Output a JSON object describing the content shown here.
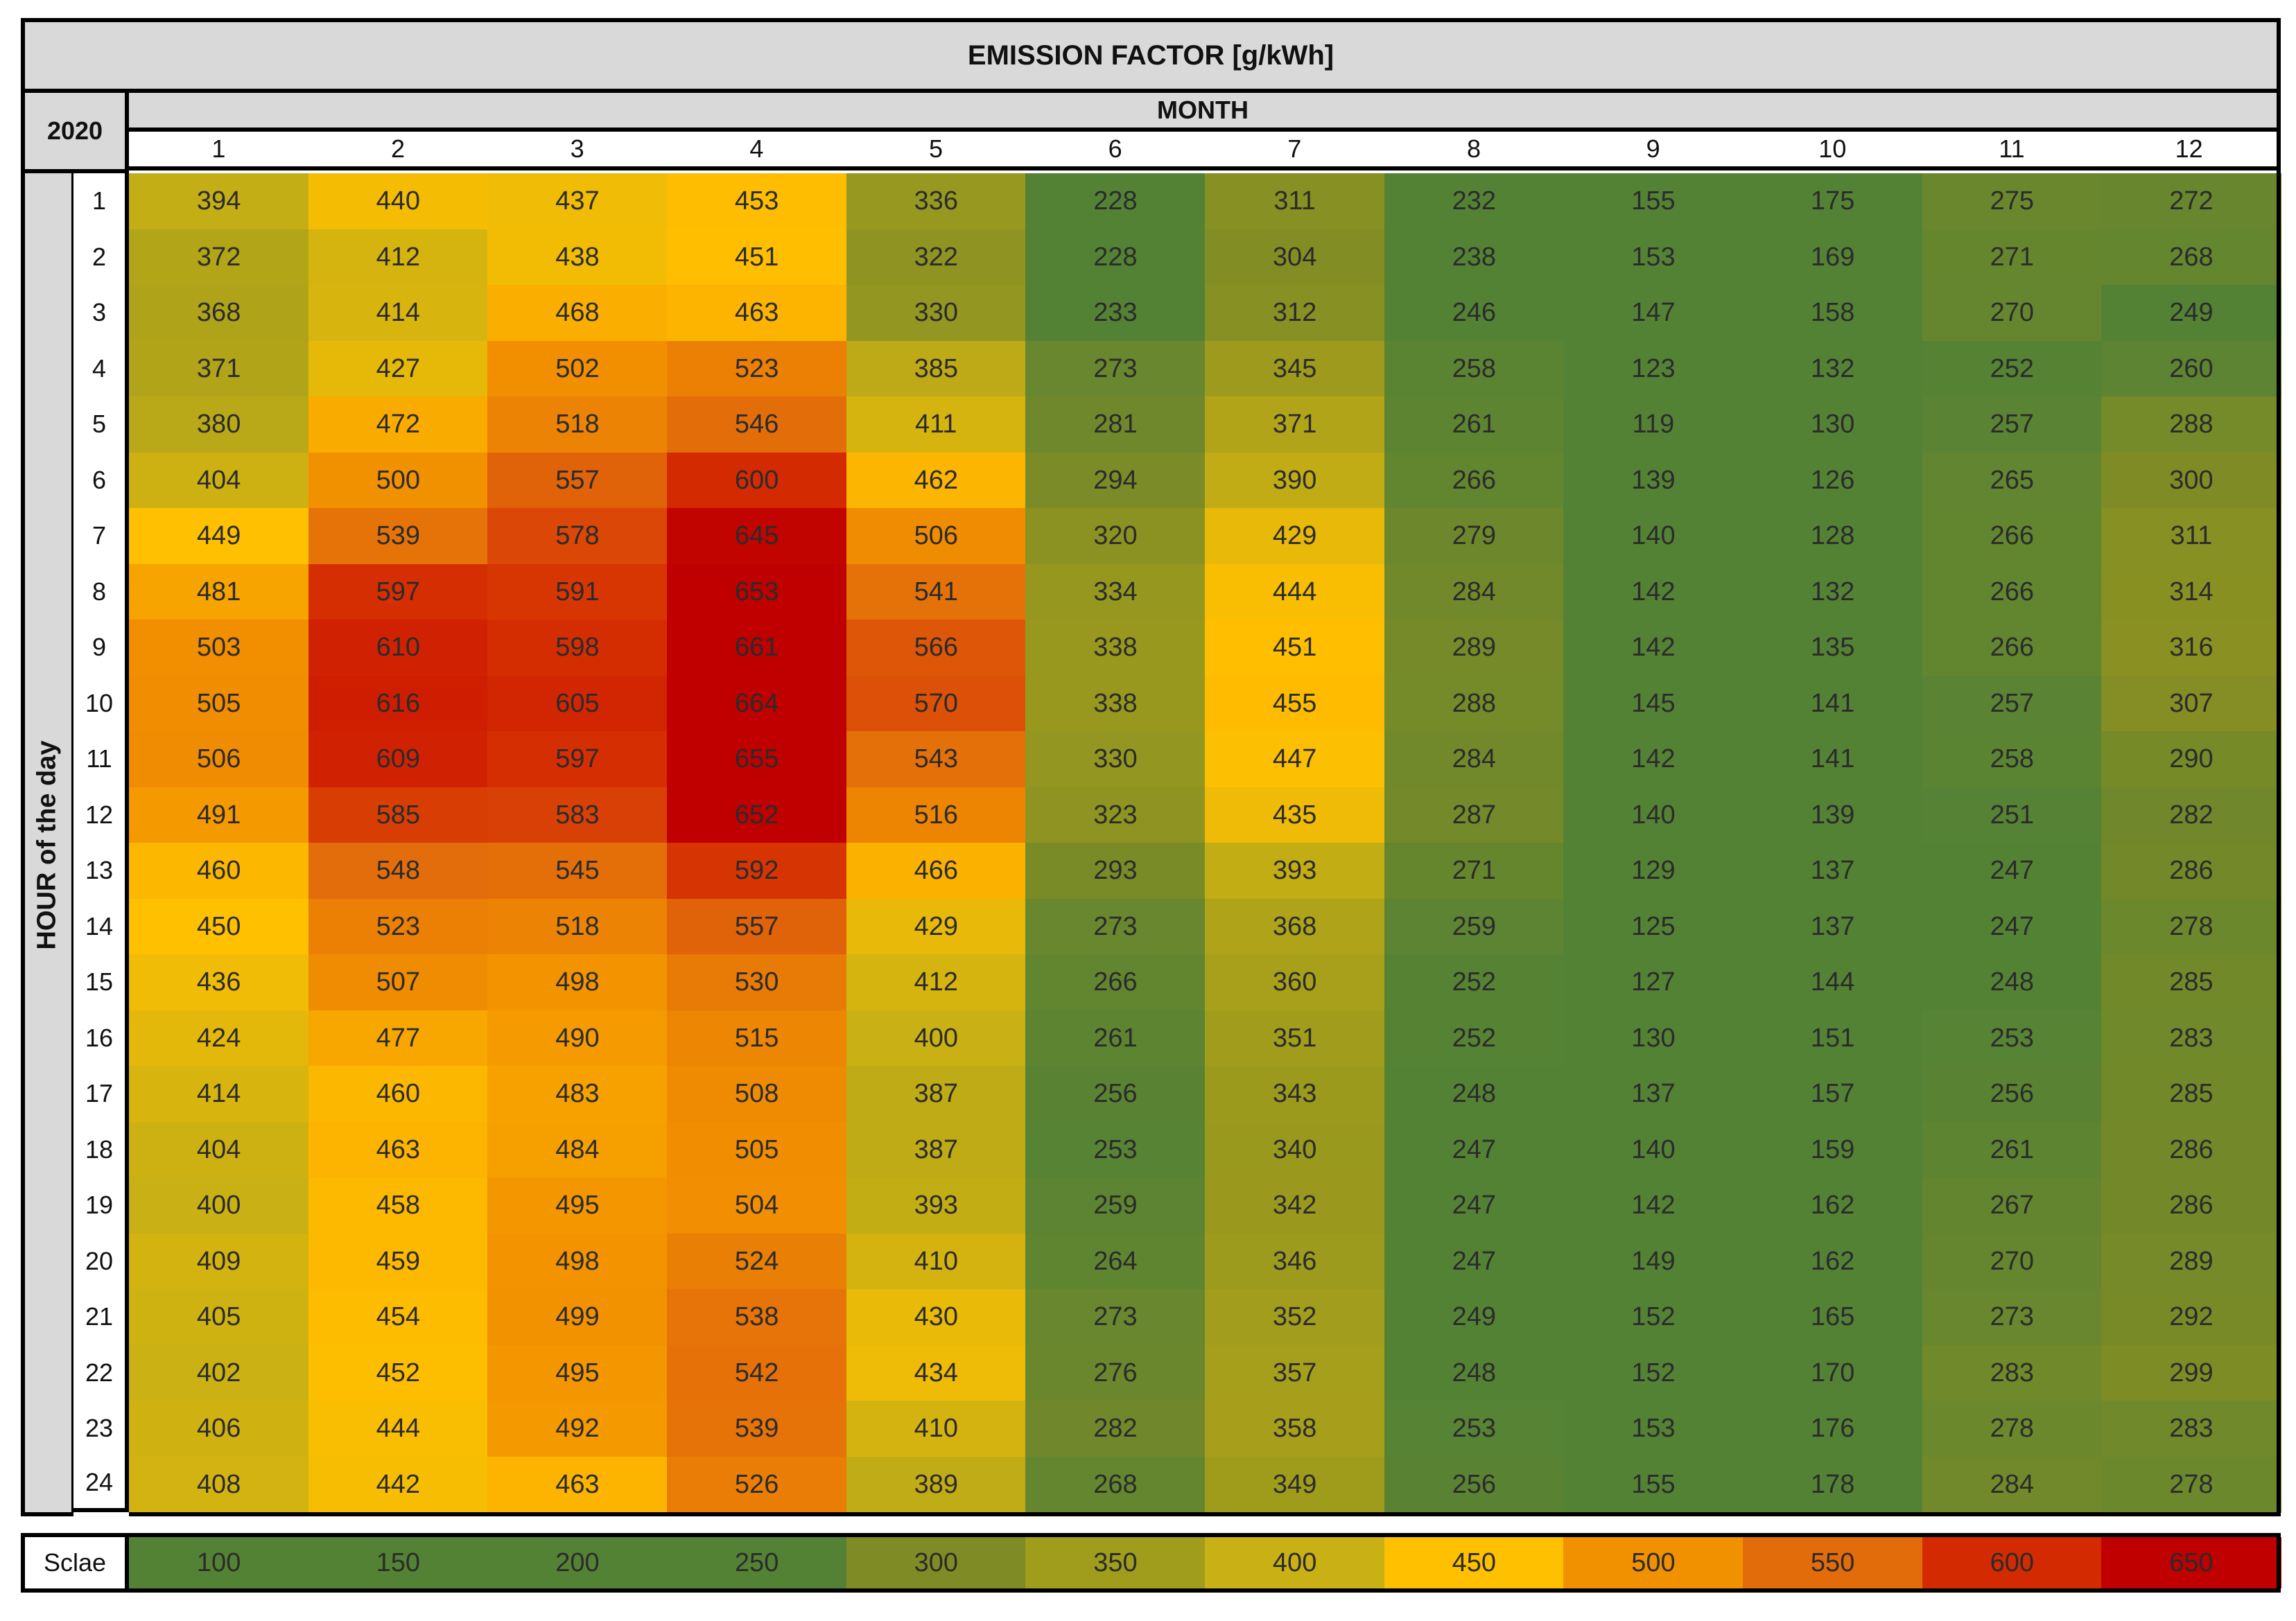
{
  "chart_data": {
    "type": "heatmap",
    "title": "EMISSION FACTOR [g/kWh]",
    "year_label": "2020",
    "xlabel": "MONTH",
    "ylabel": "HOUR of the day",
    "x_categories": [
      "1",
      "2",
      "3",
      "4",
      "5",
      "6",
      "7",
      "8",
      "9",
      "10",
      "11",
      "12"
    ],
    "y_categories": [
      "1",
      "2",
      "3",
      "4",
      "5",
      "6",
      "7",
      "8",
      "9",
      "10",
      "11",
      "12",
      "13",
      "14",
      "15",
      "16",
      "17",
      "18",
      "19",
      "20",
      "21",
      "22",
      "23",
      "24"
    ],
    "values": [
      [
        394,
        440,
        437,
        453,
        336,
        228,
        311,
        232,
        155,
        175,
        275,
        272
      ],
      [
        372,
        412,
        438,
        451,
        322,
        228,
        304,
        238,
        153,
        169,
        271,
        268
      ],
      [
        368,
        414,
        468,
        463,
        330,
        233,
        312,
        246,
        147,
        158,
        270,
        249
      ],
      [
        371,
        427,
        502,
        523,
        385,
        273,
        345,
        258,
        123,
        132,
        252,
        260
      ],
      [
        380,
        472,
        518,
        546,
        411,
        281,
        371,
        261,
        119,
        130,
        257,
        288
      ],
      [
        404,
        500,
        557,
        600,
        462,
        294,
        390,
        266,
        139,
        126,
        265,
        300
      ],
      [
        449,
        539,
        578,
        645,
        506,
        320,
        429,
        279,
        140,
        128,
        266,
        311
      ],
      [
        481,
        597,
        591,
        653,
        541,
        334,
        444,
        284,
        142,
        132,
        266,
        314
      ],
      [
        503,
        610,
        598,
        661,
        566,
        338,
        451,
        289,
        142,
        135,
        266,
        316
      ],
      [
        505,
        616,
        605,
        664,
        570,
        338,
        455,
        288,
        145,
        141,
        257,
        307
      ],
      [
        506,
        609,
        597,
        655,
        543,
        330,
        447,
        284,
        142,
        141,
        258,
        290
      ],
      [
        491,
        585,
        583,
        652,
        516,
        323,
        435,
        287,
        140,
        139,
        251,
        282
      ],
      [
        460,
        548,
        545,
        592,
        466,
        293,
        393,
        271,
        129,
        137,
        247,
        286
      ],
      [
        450,
        523,
        518,
        557,
        429,
        273,
        368,
        259,
        125,
        137,
        247,
        278
      ],
      [
        436,
        507,
        498,
        530,
        412,
        266,
        360,
        252,
        127,
        144,
        248,
        285
      ],
      [
        424,
        477,
        490,
        515,
        400,
        261,
        351,
        252,
        130,
        151,
        253,
        283
      ],
      [
        414,
        460,
        483,
        508,
        387,
        256,
        343,
        248,
        137,
        157,
        256,
        285
      ],
      [
        404,
        463,
        484,
        505,
        387,
        253,
        340,
        247,
        140,
        159,
        261,
        286
      ],
      [
        400,
        458,
        495,
        504,
        393,
        259,
        342,
        247,
        142,
        162,
        267,
        286
      ],
      [
        409,
        459,
        498,
        524,
        410,
        264,
        346,
        247,
        149,
        162,
        270,
        289
      ],
      [
        405,
        454,
        499,
        538,
        430,
        273,
        352,
        249,
        152,
        165,
        273,
        292
      ],
      [
        402,
        452,
        495,
        542,
        434,
        276,
        357,
        248,
        152,
        170,
        283,
        299
      ],
      [
        406,
        444,
        492,
        539,
        410,
        282,
        358,
        253,
        153,
        176,
        278,
        283
      ],
      [
        408,
        442,
        463,
        526,
        389,
        268,
        349,
        256,
        155,
        178,
        284,
        278
      ]
    ],
    "legend": {
      "label": "Sclae",
      "values": [
        100,
        150,
        200,
        250,
        300,
        350,
        400,
        450,
        500,
        550,
        600,
        650
      ],
      "colors": [
        "#548235",
        "#548235",
        "#548235",
        "#548235",
        "#7f8c25",
        "#a09c1c",
        "#c9b014",
        "#ffc000",
        "#f29100",
        "#e26b0a",
        "#d42a02",
        "#c00000"
      ]
    }
  }
}
